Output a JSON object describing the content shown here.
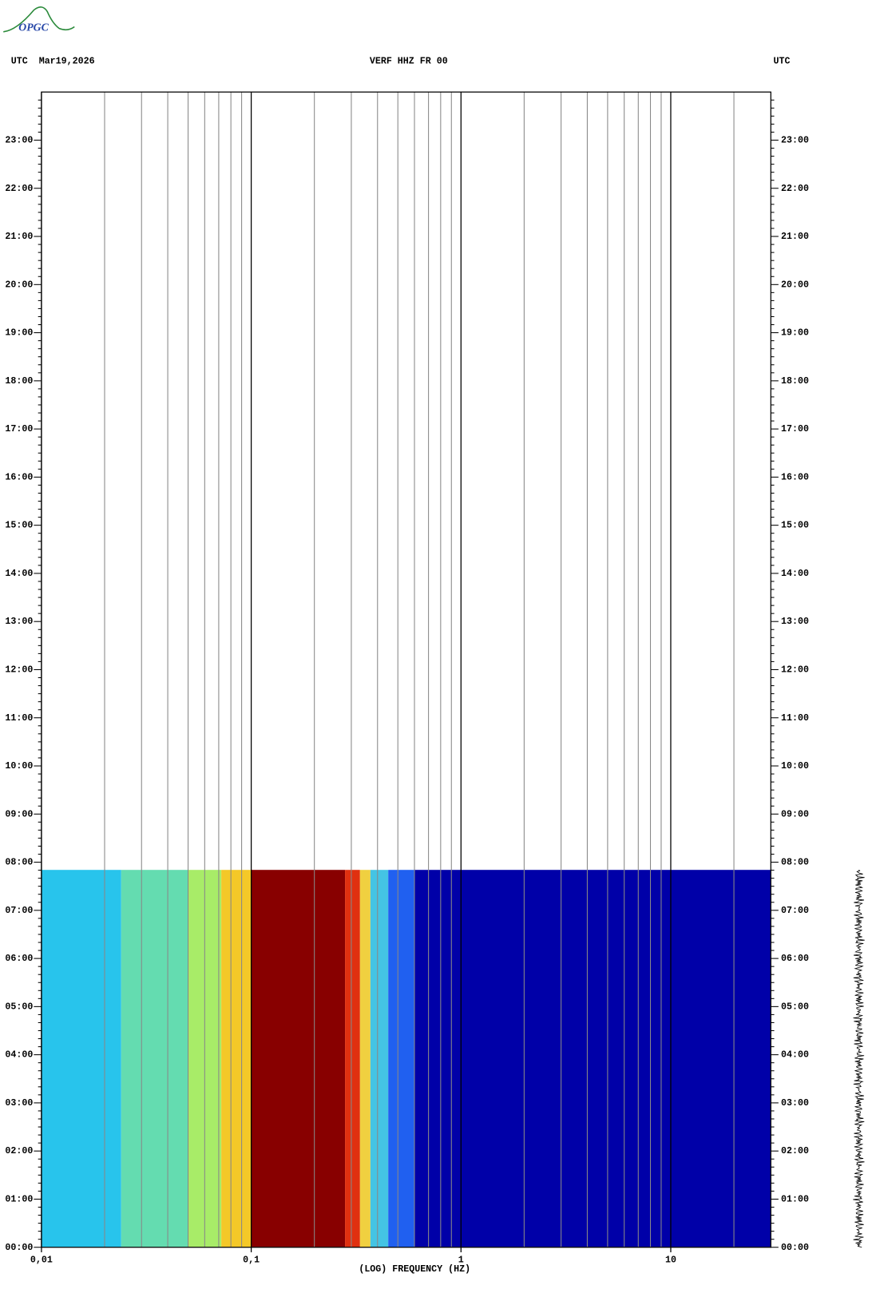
{
  "chart_data": {
    "type": "spectrogram",
    "logo": "OPGC",
    "header_left": "UTC  Mar19,2026",
    "title": "VERF HHZ FR 00",
    "header_right": "UTC",
    "xlabel": "(LOG) FREQUENCY (HZ)",
    "xscale": "log",
    "xlim": [
      0.01,
      30
    ],
    "xticks": [
      {
        "value": 0.01,
        "label": "0,01"
      },
      {
        "value": 0.1,
        "label": "0,1"
      },
      1,
      10
    ],
    "xminor": [
      0.02,
      0.03,
      0.04,
      0.05,
      0.06,
      0.07,
      0.08,
      0.09,
      0.2,
      0.3,
      0.4,
      0.5,
      0.6,
      0.7,
      0.8,
      0.9,
      2,
      3,
      4,
      5,
      6,
      7,
      8,
      9,
      20
    ],
    "ylim": [
      0,
      24
    ],
    "yticks": [
      {
        "value": 0,
        "label": "00:00"
      },
      {
        "value": 1,
        "label": "01:00"
      },
      {
        "value": 2,
        "label": "02:00"
      },
      {
        "value": 3,
        "label": "03:00"
      },
      {
        "value": 4,
        "label": "04:00"
      },
      {
        "value": 5,
        "label": "05:00"
      },
      {
        "value": 6,
        "label": "06:00"
      },
      {
        "value": 7,
        "label": "07:00"
      },
      {
        "value": 8,
        "label": "08:00"
      },
      {
        "value": 9,
        "label": "09:00"
      },
      {
        "value": 10,
        "label": "10:00"
      },
      {
        "value": 11,
        "label": "11:00"
      },
      {
        "value": 12,
        "label": "12:00"
      },
      {
        "value": 13,
        "label": "13:00"
      },
      {
        "value": 14,
        "label": "14:00"
      },
      {
        "value": 15,
        "label": "15:00"
      },
      {
        "value": 16,
        "label": "16:00"
      },
      {
        "value": 17,
        "label": "17:00"
      },
      {
        "value": 18,
        "label": "18:00"
      },
      {
        "value": 19,
        "label": "19:00"
      },
      {
        "value": 20,
        "label": "20:00"
      },
      {
        "value": 21,
        "label": "21:00"
      },
      {
        "value": 22,
        "label": "22:00"
      },
      {
        "value": 23,
        "label": "23:00"
      }
    ],
    "time_end": 7.84,
    "bands": [
      {
        "from": 0.01,
        "to": 0.024,
        "color": "#28c4ec"
      },
      {
        "from": 0.024,
        "to": 0.05,
        "color": "#64dcb0"
      },
      {
        "from": 0.05,
        "to": 0.072,
        "color": "#a8ec68"
      },
      {
        "from": 0.072,
        "to": 0.1,
        "color": "#f4c828"
      },
      {
        "from": 0.1,
        "to": 0.28,
        "color": "#880000"
      },
      {
        "from": 0.28,
        "to": 0.33,
        "color": "#e03010"
      },
      {
        "from": 0.33,
        "to": 0.37,
        "color": "#f0d040"
      },
      {
        "from": 0.37,
        "to": 0.45,
        "color": "#44c4e4"
      },
      {
        "from": 0.45,
        "to": 0.6,
        "color": "#2060f0"
      },
      {
        "from": 0.6,
        "to": 30,
        "color": "#0000a8"
      }
    ]
  }
}
